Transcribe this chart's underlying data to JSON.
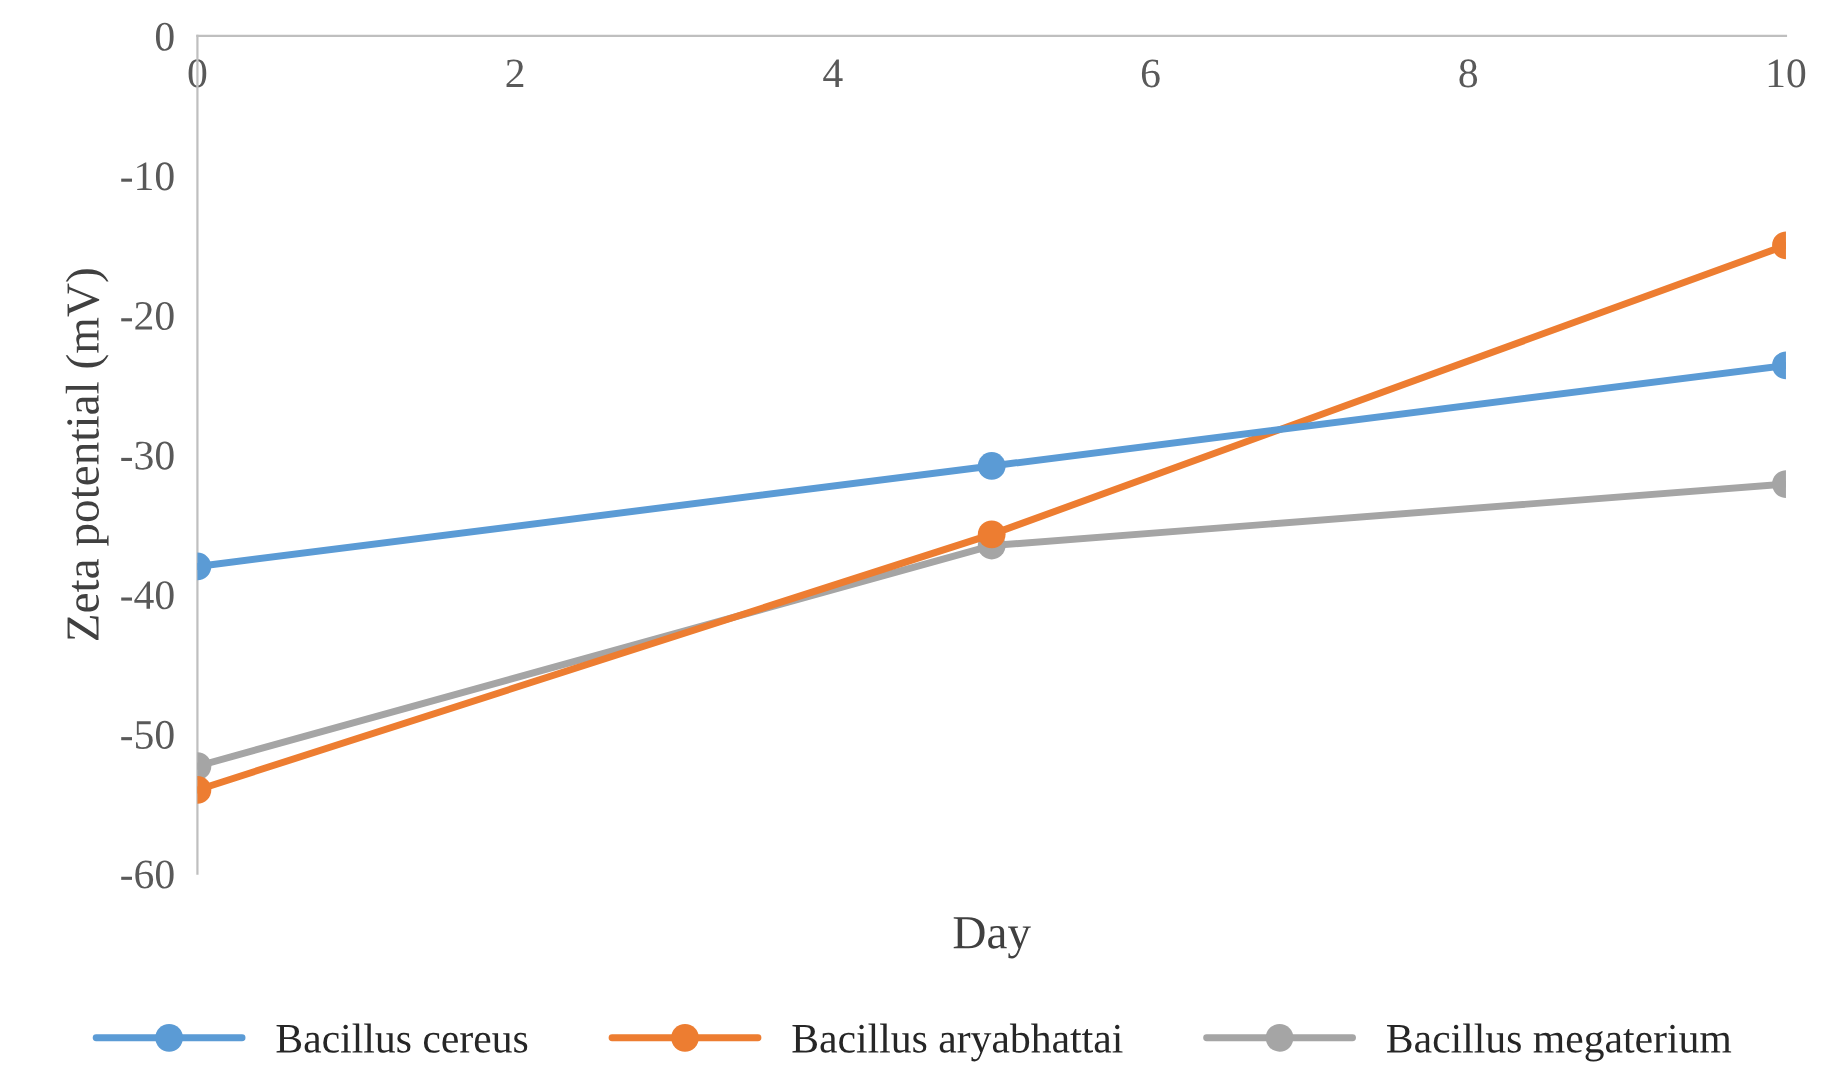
{
  "chart_data": {
    "type": "line",
    "xlabel": "Day",
    "ylabel": "Zeta potential (mV)",
    "x": [
      0,
      5,
      10
    ],
    "series": [
      {
        "name": "Bacillus cereus",
        "color": "#5b9bd5",
        "values": [
          -38.0,
          -30.8,
          -23.6
        ]
      },
      {
        "name": "Bacillus aryabhattai",
        "color": "#ed7d31",
        "values": [
          -54.0,
          -35.7,
          -15.0
        ]
      },
      {
        "name": "Bacillus megaterium",
        "color": "#a5a5a5",
        "values": [
          -52.3,
          -36.5,
          -32.1
        ]
      }
    ],
    "xlim": [
      0,
      10
    ],
    "xticks": [
      0,
      2,
      4,
      6,
      8,
      10
    ],
    "ylim": [
      -60,
      0
    ],
    "yticks": [
      -60,
      -50,
      -40,
      -30,
      -20,
      -10,
      0
    ],
    "grid": false,
    "legend": "bottom",
    "marker": "circle",
    "line_style": "solid"
  }
}
